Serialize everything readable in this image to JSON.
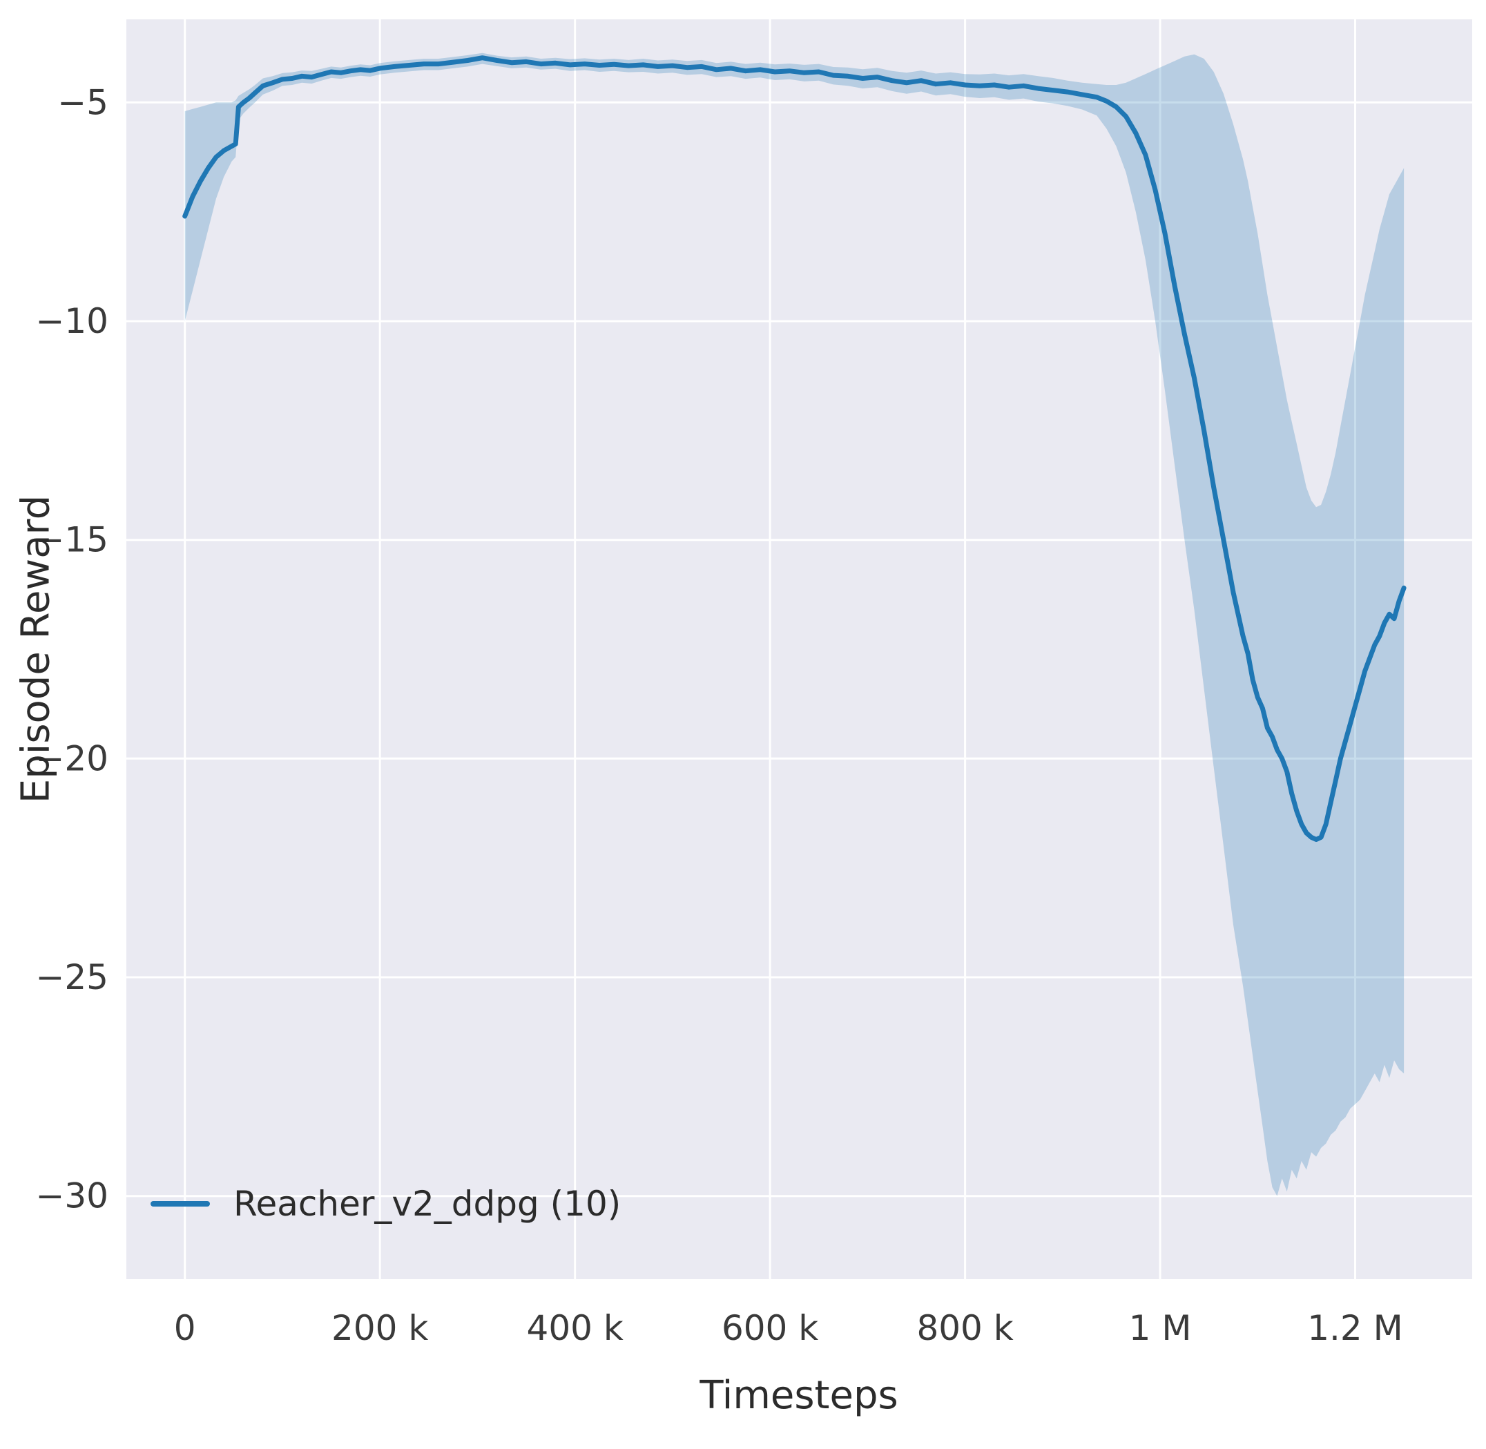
{
  "chart_data": {
    "type": "line",
    "title": "",
    "xlabel": "Timesteps",
    "ylabel": "Episode Reward",
    "xlim": [
      -60000,
      1320000
    ],
    "ylim": [
      -31.9,
      -3.1
    ],
    "grid": true,
    "legend_position": "lower left",
    "xticks": {
      "values": [
        0,
        200000,
        400000,
        600000,
        800000,
        1000000,
        1200000
      ],
      "labels": [
        "0",
        "200 k",
        "400 k",
        "600 k",
        "800 k",
        "1 M",
        "1.2 M"
      ]
    },
    "yticks": {
      "values": [
        -5,
        -10,
        -15,
        -20,
        -25,
        -30
      ],
      "labels": [
        "−5",
        "−10",
        "−15",
        "−20",
        "−25",
        "−30"
      ]
    },
    "style": {
      "axes_bg": "#eaeaf2",
      "grid_color": "#ffffff",
      "line_color": "#1f77b4",
      "band_color": "#1f77b4",
      "band_opacity": 0.25,
      "text_color": "#3a3a3a"
    },
    "series": [
      {
        "name": "Reacher_v2_ddpg (10)",
        "x": [
          0,
          8000,
          16000,
          24000,
          32000,
          40000,
          48000,
          52000,
          55000,
          60000,
          66000,
          72000,
          80000,
          90000,
          100000,
          110000,
          120000,
          130000,
          140000,
          150000,
          160000,
          170000,
          180000,
          190000,
          200000,
          215000,
          230000,
          245000,
          260000,
          275000,
          290000,
          305000,
          320000,
          335000,
          350000,
          365000,
          380000,
          395000,
          410000,
          425000,
          440000,
          455000,
          470000,
          485000,
          500000,
          515000,
          530000,
          545000,
          560000,
          575000,
          590000,
          605000,
          620000,
          635000,
          650000,
          665000,
          680000,
          695000,
          710000,
          725000,
          740000,
          755000,
          770000,
          785000,
          800000,
          815000,
          830000,
          845000,
          860000,
          875000,
          890000,
          905000,
          920000,
          935000,
          945000,
          955000,
          965000,
          975000,
          985000,
          995000,
          1005000,
          1015000,
          1025000,
          1035000,
          1045000,
          1055000,
          1065000,
          1075000,
          1085000,
          1090000,
          1095000,
          1100000,
          1105000,
          1110000,
          1115000,
          1120000,
          1125000,
          1130000,
          1135000,
          1140000,
          1145000,
          1150000,
          1155000,
          1160000,
          1165000,
          1170000,
          1175000,
          1180000,
          1185000,
          1190000,
          1195000,
          1200000,
          1205000,
          1210000,
          1215000,
          1220000,
          1225000,
          1230000,
          1235000,
          1240000,
          1245000,
          1250000
        ],
        "mean": [
          -7.6,
          -7.15,
          -6.8,
          -6.5,
          -6.25,
          -6.1,
          -6.0,
          -5.95,
          -5.1,
          -5.0,
          -4.9,
          -4.78,
          -4.62,
          -4.55,
          -4.47,
          -4.45,
          -4.4,
          -4.42,
          -4.36,
          -4.3,
          -4.32,
          -4.28,
          -4.25,
          -4.27,
          -4.22,
          -4.18,
          -4.15,
          -4.12,
          -4.12,
          -4.08,
          -4.04,
          -3.98,
          -4.04,
          -4.09,
          -4.07,
          -4.12,
          -4.1,
          -4.14,
          -4.12,
          -4.15,
          -4.13,
          -4.16,
          -4.14,
          -4.18,
          -4.16,
          -4.2,
          -4.18,
          -4.25,
          -4.22,
          -4.28,
          -4.25,
          -4.3,
          -4.28,
          -4.32,
          -4.3,
          -4.38,
          -4.4,
          -4.45,
          -4.42,
          -4.5,
          -4.55,
          -4.5,
          -4.58,
          -4.55,
          -4.6,
          -4.62,
          -4.6,
          -4.65,
          -4.62,
          -4.68,
          -4.72,
          -4.76,
          -4.82,
          -4.88,
          -4.97,
          -5.1,
          -5.32,
          -5.7,
          -6.2,
          -7.0,
          -8.0,
          -9.2,
          -10.3,
          -11.3,
          -12.5,
          -13.8,
          -15.0,
          -16.2,
          -17.2,
          -17.6,
          -18.2,
          -18.6,
          -18.85,
          -19.3,
          -19.5,
          -19.8,
          -20.0,
          -20.3,
          -20.8,
          -21.2,
          -21.5,
          -21.7,
          -21.8,
          -21.85,
          -21.8,
          -21.5,
          -21.0,
          -20.5,
          -20.0,
          -19.6,
          -19.2,
          -18.8,
          -18.4,
          -18.0,
          -17.7,
          -17.4,
          -17.2,
          -16.9,
          -16.7,
          -16.8,
          -16.4,
          -16.1
        ],
        "lower": [
          -10.0,
          -9.3,
          -8.6,
          -7.9,
          -7.2,
          -6.7,
          -6.35,
          -6.25,
          -5.4,
          -5.25,
          -5.12,
          -5.0,
          -4.82,
          -4.73,
          -4.62,
          -4.6,
          -4.55,
          -4.57,
          -4.5,
          -4.44,
          -4.46,
          -4.42,
          -4.39,
          -4.41,
          -4.36,
          -4.32,
          -4.29,
          -4.26,
          -4.26,
          -4.22,
          -4.18,
          -4.12,
          -4.17,
          -4.22,
          -4.2,
          -4.25,
          -4.23,
          -4.28,
          -4.26,
          -4.3,
          -4.28,
          -4.31,
          -4.3,
          -4.34,
          -4.32,
          -4.37,
          -4.35,
          -4.42,
          -4.4,
          -4.46,
          -4.43,
          -4.49,
          -4.47,
          -4.52,
          -4.5,
          -4.59,
          -4.62,
          -4.68,
          -4.65,
          -4.74,
          -4.8,
          -4.75,
          -4.84,
          -4.81,
          -4.87,
          -4.9,
          -4.88,
          -4.94,
          -4.91,
          -4.98,
          -5.02,
          -5.08,
          -5.16,
          -5.3,
          -5.6,
          -6.0,
          -6.6,
          -7.5,
          -8.6,
          -10.0,
          -11.6,
          -13.3,
          -15.0,
          -16.6,
          -18.4,
          -20.2,
          -22.0,
          -23.8,
          -25.2,
          -26.0,
          -26.8,
          -27.6,
          -28.4,
          -29.2,
          -29.8,
          -30.0,
          -29.6,
          -29.9,
          -29.4,
          -29.6,
          -29.2,
          -29.4,
          -29.0,
          -29.1,
          -28.9,
          -28.8,
          -28.6,
          -28.5,
          -28.3,
          -28.2,
          -28.0,
          -27.9,
          -27.8,
          -27.6,
          -27.4,
          -27.2,
          -27.4,
          -27.0,
          -27.3,
          -26.9,
          -27.1,
          -27.2
        ],
        "upper": [
          -5.2,
          -5.15,
          -5.1,
          -5.05,
          -5.0,
          -5.0,
          -5.0,
          -4.95,
          -4.85,
          -4.78,
          -4.7,
          -4.6,
          -4.45,
          -4.4,
          -4.33,
          -4.31,
          -4.27,
          -4.28,
          -4.23,
          -4.18,
          -4.2,
          -4.16,
          -4.13,
          -4.15,
          -4.1,
          -4.06,
          -4.03,
          -4.0,
          -4.0,
          -3.96,
          -3.92,
          -3.87,
          -3.93,
          -3.97,
          -3.95,
          -4.0,
          -3.98,
          -4.01,
          -3.99,
          -4.02,
          -4.0,
          -4.03,
          -4.0,
          -4.04,
          -4.02,
          -4.05,
          -4.03,
          -4.1,
          -4.07,
          -4.12,
          -4.09,
          -4.13,
          -4.11,
          -4.14,
          -4.12,
          -4.19,
          -4.2,
          -4.24,
          -4.21,
          -4.28,
          -4.32,
          -4.27,
          -4.34,
          -4.31,
          -4.35,
          -4.36,
          -4.34,
          -4.38,
          -4.35,
          -4.4,
          -4.44,
          -4.5,
          -4.55,
          -4.58,
          -4.6,
          -4.6,
          -4.55,
          -4.45,
          -4.35,
          -4.25,
          -4.15,
          -4.05,
          -3.95,
          -3.9,
          -4.0,
          -4.3,
          -4.8,
          -5.5,
          -6.3,
          -6.8,
          -7.4,
          -8.0,
          -8.7,
          -9.4,
          -10.0,
          -10.6,
          -11.2,
          -11.8,
          -12.3,
          -12.8,
          -13.3,
          -13.8,
          -14.1,
          -14.25,
          -14.2,
          -13.9,
          -13.5,
          -13.0,
          -12.4,
          -11.8,
          -11.2,
          -10.6,
          -10.0,
          -9.4,
          -8.9,
          -8.4,
          -7.9,
          -7.5,
          -7.1,
          -6.9,
          -6.7,
          -6.5
        ]
      }
    ]
  }
}
